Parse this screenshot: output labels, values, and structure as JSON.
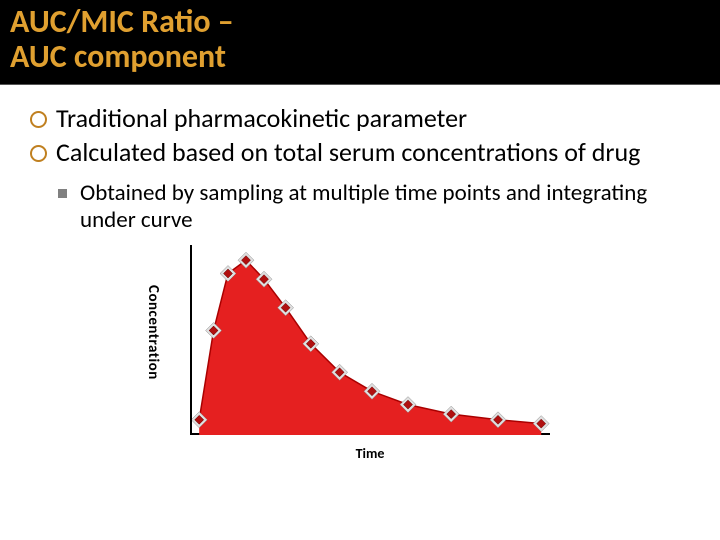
{
  "header": {
    "title_line1": "AUC/MIC Ratio –",
    "title_line2": "AUC component"
  },
  "bullets": [
    "Traditional pharmacokinetic parameter",
    "Calculated based on total serum concentrations of drug"
  ],
  "sub_bullet": "Obtained by sampling at multiple time points and integrating under curve",
  "chart": {
    "type": "area",
    "ylabel": "Concentration",
    "xlabel": "Time",
    "xlim": [
      0,
      100
    ],
    "ylim": [
      0,
      100
    ],
    "area_color": "#e52020",
    "line_color": "#aa0000",
    "marker_outer_color": "#e0e0e0",
    "marker_inner_color": "#b01010",
    "axis_color": "#000000",
    "background_color": "#ffffff",
    "label_fontsize": 14,
    "data_points": [
      {
        "x": 2,
        "y": 8
      },
      {
        "x": 6,
        "y": 55
      },
      {
        "x": 10,
        "y": 85
      },
      {
        "x": 15,
        "y": 92
      },
      {
        "x": 20,
        "y": 82
      },
      {
        "x": 26,
        "y": 67
      },
      {
        "x": 33,
        "y": 48
      },
      {
        "x": 41,
        "y": 33
      },
      {
        "x": 50,
        "y": 23
      },
      {
        "x": 60,
        "y": 16
      },
      {
        "x": 72,
        "y": 11
      },
      {
        "x": 85,
        "y": 8
      },
      {
        "x": 97,
        "y": 6
      }
    ]
  }
}
